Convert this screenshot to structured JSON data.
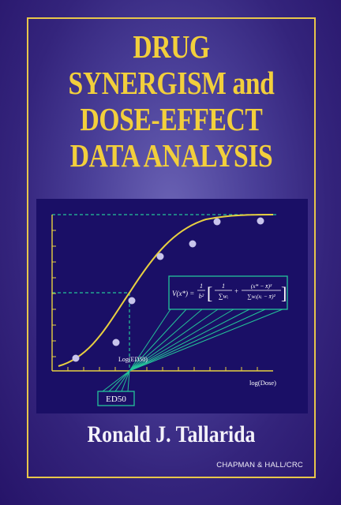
{
  "cover": {
    "title_lines": [
      "DRUG",
      "SYNERGISM and",
      "DOSE-EFFECT",
      "DATA ANALYSIS"
    ],
    "author": "Ronald J. Tallarida",
    "publisher": "CHAPMAN & HALL/CRC"
  },
  "figure": {
    "x_axis_label": "log(Dose)",
    "midpoint_label": "Log(ED50)",
    "ed50_box_label": "ED50",
    "formula_lhs": "V(x*) =",
    "formula_coef_num": "1",
    "formula_coef_den": "b²",
    "formula_t1_num": "1",
    "formula_t1_den": "∑wᵢ",
    "formula_t2_num": "(x* − x̄)²",
    "formula_t2_den": "∑wᵢ(xᵢ − x̄)²",
    "formula_plus": "+",
    "colors": {
      "curve": "#e8d040",
      "points": "#c8c4ec",
      "guides": "#24c49a",
      "axes": "#e8d040",
      "panel": "#1a0f66"
    }
  }
}
